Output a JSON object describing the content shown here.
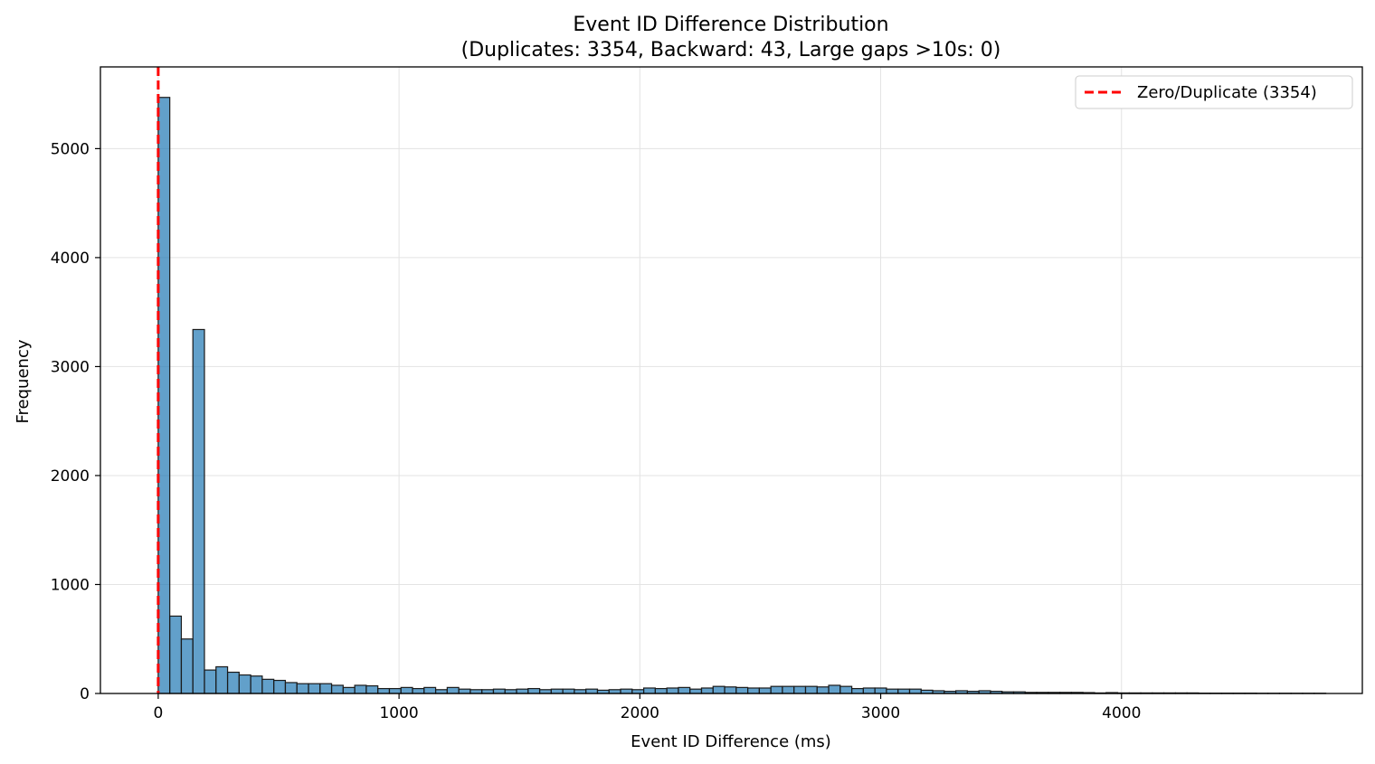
{
  "chart_data": {
    "type": "bar",
    "title": "Event ID Difference Distribution",
    "subtitle": "(Duplicates: 3354, Backward: 43, Large gaps >10s: 0)",
    "xlabel": "Event ID Difference (ms)",
    "ylabel": "Frequency",
    "xlim": [
      -240,
      5000
    ],
    "ylim": [
      0,
      5750
    ],
    "xticks": [
      0,
      1000,
      2000,
      3000,
      4000
    ],
    "yticks": [
      0,
      1000,
      2000,
      3000,
      4000,
      5000
    ],
    "grid": true,
    "bin_start": 0,
    "bin_width": 48,
    "bar_color": "#1f77b4",
    "bar_edge_color": "#1a1a1a",
    "values": [
      5470,
      710,
      500,
      3340,
      215,
      245,
      195,
      170,
      160,
      130,
      120,
      100,
      90,
      90,
      90,
      75,
      55,
      75,
      70,
      45,
      45,
      55,
      45,
      55,
      35,
      55,
      40,
      35,
      35,
      40,
      35,
      40,
      45,
      35,
      40,
      40,
      35,
      40,
      30,
      35,
      40,
      35,
      50,
      45,
      50,
      55,
      40,
      50,
      65,
      60,
      55,
      50,
      50,
      65,
      65,
      65,
      65,
      60,
      75,
      65,
      45,
      50,
      50,
      40,
      40,
      40,
      30,
      25,
      20,
      25,
      20,
      25,
      20,
      15,
      15,
      10,
      10,
      10,
      10,
      10,
      8,
      5,
      8,
      5,
      5,
      5,
      5,
      5,
      5,
      5,
      3,
      3,
      3,
      3,
      3,
      2,
      2,
      2,
      2,
      2,
      2
    ],
    "reference_line": {
      "x": 0,
      "label": "Zero/Duplicate (3354)",
      "color": "#ff0000",
      "style": "dashed"
    },
    "legend": {
      "placement": "top-right",
      "entries": [
        "Zero/Duplicate (3354)"
      ]
    }
  }
}
